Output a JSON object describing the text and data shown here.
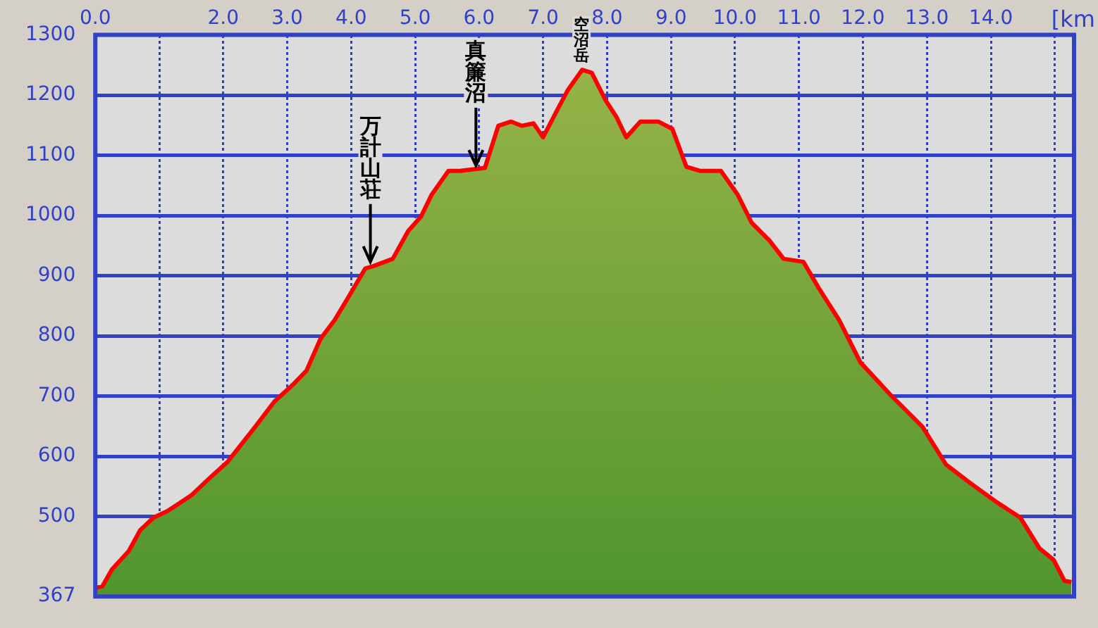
{
  "chart_data": {
    "type": "area",
    "xlabel": "[km",
    "x": [
      0.0,
      0.11,
      0.26,
      0.52,
      0.7,
      0.91,
      1.13,
      1.5,
      1.78,
      2.07,
      2.5,
      2.8,
      3.09,
      3.3,
      3.52,
      3.74,
      3.96,
      4.22,
      4.35,
      4.65,
      4.89,
      5.09,
      5.26,
      5.52,
      5.7,
      6.09,
      6.3,
      6.5,
      6.67,
      6.85,
      7.0,
      7.22,
      7.39,
      7.61,
      7.76,
      7.98,
      8.15,
      8.3,
      8.52,
      8.8,
      9.02,
      9.24,
      9.46,
      9.78,
      10.04,
      10.26,
      10.54,
      10.76,
      11.07,
      11.3,
      11.63,
      11.96,
      12.43,
      12.93,
      13.3,
      13.67,
      14.1,
      14.46,
      14.76,
      14.98,
      15.15,
      15.26
    ],
    "series": [
      {
        "color": "#ff0000",
        "values": [
          381,
          384,
          412,
          442,
          477,
          498,
          509,
          535,
          563,
          591,
          649,
          691,
          719,
          742,
          795,
          826,
          865,
          912,
          916,
          928,
          974,
          998,
          1035,
          1074,
          1074,
          1079,
          1149,
          1156,
          1149,
          1153,
          1130,
          1175,
          1209,
          1242,
          1237,
          1191,
          1163,
          1130,
          1156,
          1156,
          1144,
          1081,
          1074,
          1074,
          1035,
          988,
          958,
          928,
          923,
          881,
          826,
          756,
          702,
          649,
          586,
          556,
          523,
          498,
          447,
          428,
          393,
          391
        ]
      }
    ],
    "xlim": [
      0,
      15.3
    ],
    "xticks": [
      {
        "value": 0,
        "label": "0.0"
      },
      {
        "value": 1,
        "label": null
      },
      {
        "value": 2,
        "label": "2.0"
      },
      {
        "value": 3,
        "label": "3.0"
      },
      {
        "value": 4,
        "label": "4.0"
      },
      {
        "value": 5,
        "label": "5.0"
      },
      {
        "value": 6,
        "label": "6.0"
      },
      {
        "value": 7,
        "label": "7.0"
      },
      {
        "value": 8,
        "label": "8.0"
      },
      {
        "value": 9,
        "label": "9.0"
      },
      {
        "value": 10,
        "label": "10.0"
      },
      {
        "value": 11,
        "label": "11.0"
      },
      {
        "value": 12,
        "label": "12.0"
      },
      {
        "value": 13,
        "label": "13.0"
      },
      {
        "value": 14,
        "label": "14.0"
      },
      {
        "value": 15,
        "label": null
      }
    ],
    "ylim": [
      367,
      1300
    ],
    "yticks": [
      367,
      500,
      600,
      700,
      800,
      900,
      1000,
      1100,
      1200,
      1300
    ],
    "grid": true,
    "legend": false,
    "marker": "none",
    "line_style": "solid",
    "annotations": [
      {
        "text": "万計山荘",
        "x": 4.3,
        "y": 916
      },
      {
        "text": "真簾沼",
        "x": 5.95,
        "y": 1076
      },
      {
        "text": "空沼岳",
        "x": 7.6,
        "y": 1242
      }
    ]
  }
}
